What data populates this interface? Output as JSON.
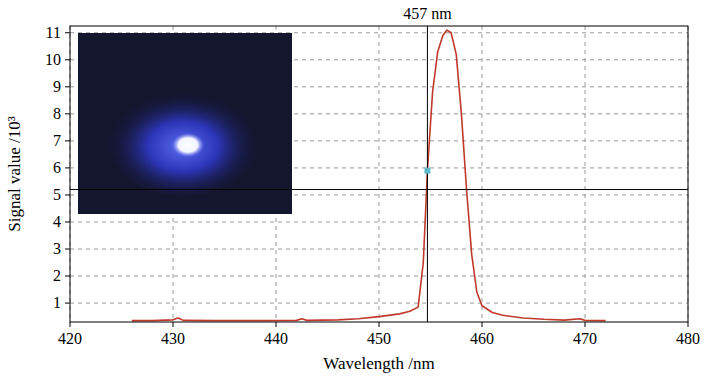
{
  "chart_data": {
    "type": "line",
    "x_label": "Wavelength /nm",
    "y_label": "Signal value /10³",
    "x": [
      426,
      428,
      430,
      430.5,
      431,
      434,
      438,
      442,
      442.5,
      443,
      446,
      448,
      450,
      452,
      453,
      453.8,
      454.3,
      454.7,
      455.2,
      455.7,
      456.2,
      456.6,
      457,
      457.5,
      458,
      458.5,
      459,
      459.5,
      460,
      461,
      462,
      464,
      466,
      468,
      469.5,
      470,
      472
    ],
    "values": [
      0.35,
      0.35,
      0.38,
      0.45,
      0.36,
      0.35,
      0.35,
      0.36,
      0.42,
      0.36,
      0.38,
      0.42,
      0.5,
      0.6,
      0.7,
      0.85,
      2.5,
      5.9,
      8.8,
      10.3,
      10.9,
      11.1,
      11.0,
      10.2,
      8.0,
      5.2,
      2.8,
      1.4,
      0.9,
      0.65,
      0.55,
      0.45,
      0.4,
      0.37,
      0.42,
      0.36,
      0.35
    ],
    "color": "#c0392b",
    "xlim": [
      420,
      480
    ],
    "xticks": [
      420,
      430,
      440,
      450,
      460,
      470,
      480
    ],
    "ylim": [
      0.3,
      11.25
    ],
    "yticks": [
      1,
      2,
      3,
      4,
      5,
      6,
      7,
      8,
      9,
      10,
      11
    ],
    "grid": true,
    "crosshair": {
      "x": 454.7,
      "y": 5.2,
      "point_y": 5.9,
      "label": "457 nm"
    }
  }
}
